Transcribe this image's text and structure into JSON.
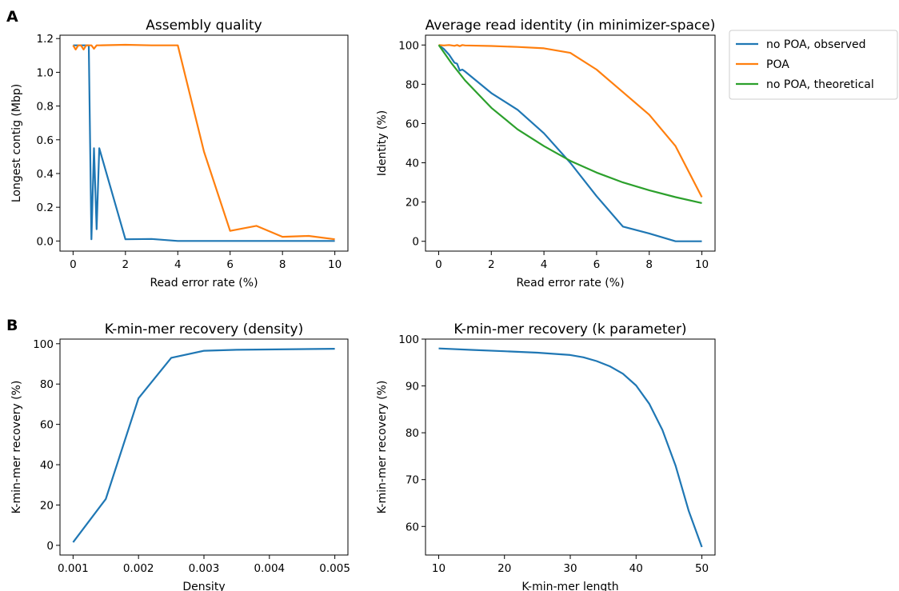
{
  "figure": {
    "panel_labels": [
      "A",
      "B"
    ]
  },
  "chart_data": [
    {
      "type": "line",
      "title": "Assembly quality",
      "xlabel": "Read error rate (%)",
      "ylabel": "Longest contig (Mbp)",
      "xlim": [
        -0.5,
        10.5
      ],
      "ylim": [
        -0.06,
        1.22
      ],
      "xticks": [
        0,
        2,
        4,
        6,
        8,
        10
      ],
      "xtick_labels": [
        "0",
        "2",
        "4",
        "6",
        "8",
        "10"
      ],
      "yticks": [
        0.0,
        0.2,
        0.4,
        0.6,
        0.8,
        1.0,
        1.2
      ],
      "ytick_labels": [
        "0.0",
        "0.2",
        "0.4",
        "0.6",
        "0.8",
        "1.0",
        "1.2"
      ],
      "grid": false,
      "series": [
        {
          "name": "no POA, observed",
          "color": "#1f77b4",
          "x": [
            0,
            0.1,
            0.2,
            0.3,
            0.4,
            0.5,
            0.6,
            0.7,
            0.8,
            0.9,
            1,
            2,
            3,
            4,
            5,
            6,
            7,
            8,
            9,
            10
          ],
          "y": [
            1.16,
            1.16,
            1.16,
            1.16,
            1.16,
            1.16,
            1.16,
            0.01,
            0.55,
            0.07,
            0.55,
            0.01,
            0.012,
            0.0,
            0.0,
            0.0,
            0.0,
            0.0,
            0.0,
            0.0
          ]
        },
        {
          "name": "POA",
          "color": "#ff7f0e",
          "x": [
            0,
            0.1,
            0.2,
            0.3,
            0.4,
            0.5,
            0.6,
            0.7,
            0.8,
            0.9,
            1,
            2,
            3,
            4,
            5,
            6,
            7,
            8,
            9,
            10
          ],
          "y": [
            1.16,
            1.135,
            1.16,
            1.16,
            1.135,
            1.16,
            1.16,
            1.16,
            1.14,
            1.16,
            1.16,
            1.163,
            1.16,
            1.16,
            0.53,
            0.06,
            0.09,
            0.025,
            0.03,
            0.01
          ]
        }
      ]
    },
    {
      "type": "line",
      "title": "Average read identity (in minimizer-space)",
      "xlabel": "Read error rate (%)",
      "ylabel": "Identity (%)",
      "xlim": [
        -0.5,
        10.5
      ],
      "ylim": [
        -5,
        105
      ],
      "xticks": [
        0,
        2,
        4,
        6,
        8,
        10
      ],
      "xtick_labels": [
        "0",
        "2",
        "4",
        "6",
        "8",
        "10"
      ],
      "yticks": [
        0,
        20,
        40,
        60,
        80,
        100
      ],
      "ytick_labels": [
        "0",
        "20",
        "40",
        "60",
        "80",
        "100"
      ],
      "grid": false,
      "legend": {
        "placement": "outside-right",
        "entries": [
          "no POA, observed",
          "POA",
          "no POA, theoretical"
        ]
      },
      "series": [
        {
          "name": "no POA, observed",
          "color": "#1f77b4",
          "x": [
            0,
            0.2,
            0.4,
            0.5,
            0.6,
            0.7,
            0.8,
            0.9,
            1,
            2,
            3,
            4,
            5,
            6,
            7,
            8,
            9,
            10
          ],
          "y": [
            100,
            98,
            95,
            93,
            91,
            90.5,
            87,
            87.5,
            86.5,
            75.5,
            67,
            55,
            40,
            23,
            7.5,
            4,
            0,
            0
          ]
        },
        {
          "name": "POA",
          "color": "#ff7f0e",
          "x": [
            0,
            0.2,
            0.4,
            0.6,
            0.7,
            0.8,
            0.9,
            1,
            2,
            3,
            4,
            5,
            6,
            7,
            8,
            9,
            10
          ],
          "y": [
            100,
            99.8,
            100,
            99.6,
            100,
            99.4,
            100,
            99.8,
            99.5,
            99,
            98.3,
            96,
            87.5,
            76,
            64.5,
            48.5,
            22.5
          ]
        },
        {
          "name": "no POA, theoretical",
          "color": "#2ca02c",
          "x": [
            0,
            0.5,
            1,
            2,
            3,
            4,
            5,
            6,
            7,
            8,
            9,
            10
          ],
          "y": [
            100,
            90.5,
            82,
            68,
            57,
            48.5,
            41,
            35,
            30,
            26,
            22.5,
            19.5
          ]
        }
      ]
    },
    {
      "type": "line",
      "title": "K-min-mer recovery (density)",
      "xlabel": "Density",
      "ylabel": "K-min-mer recovery (%)",
      "xlim": [
        0.0008,
        0.0052
      ],
      "ylim": [
        -4.8,
        102.3
      ],
      "xticks": [
        0.001,
        0.002,
        0.003,
        0.004,
        0.005
      ],
      "xtick_labels": [
        "0.001",
        "0.002",
        "0.003",
        "0.004",
        "0.005"
      ],
      "yticks": [
        0,
        20,
        40,
        60,
        80,
        100
      ],
      "ytick_labels": [
        "0",
        "20",
        "40",
        "60",
        "80",
        "100"
      ],
      "grid": false,
      "series": [
        {
          "color": "#1f77b4",
          "x": [
            0.001,
            0.0015,
            0.002,
            0.0025,
            0.003,
            0.0035,
            0.005
          ],
          "y": [
            1.5,
            23,
            73,
            93,
            96.5,
            97,
            97.5
          ]
        }
      ]
    },
    {
      "type": "line",
      "title": "K-min-mer recovery (k parameter)",
      "xlabel": "K-min-mer length",
      "ylabel": "K-min-mer recovery (%)",
      "xlim": [
        8,
        52
      ],
      "ylim": [
        53.9,
        100
      ],
      "xticks": [
        10,
        20,
        30,
        40,
        50
      ],
      "xtick_labels": [
        "10",
        "20",
        "30",
        "40",
        "50"
      ],
      "yticks": [
        60,
        70,
        80,
        90,
        100
      ],
      "ytick_labels": [
        "60",
        "70",
        "80",
        "90",
        "100"
      ],
      "grid": false,
      "series": [
        {
          "color": "#1f77b4",
          "x": [
            10,
            15,
            20,
            25,
            30,
            32,
            34,
            36,
            38,
            40,
            42,
            44,
            46,
            48,
            50
          ],
          "y": [
            98,
            97.7,
            97.4,
            97.1,
            96.6,
            96.1,
            95.3,
            94.2,
            92.6,
            90.1,
            86.2,
            80.6,
            73,
            63.3,
            55.6
          ]
        }
      ]
    }
  ]
}
